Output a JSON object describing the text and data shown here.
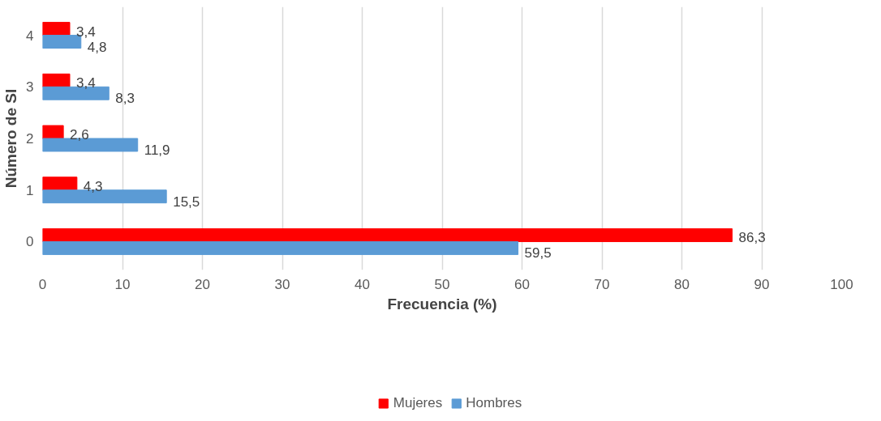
{
  "chart_data": {
    "type": "bar",
    "orientation": "horizontal",
    "xlabel": "Frecuencia (%)",
    "ylabel": "Número de SI",
    "categories": [
      "4",
      "3",
      "2",
      "1",
      "0"
    ],
    "series": [
      {
        "name": "Mujeres",
        "color": "#ff0000",
        "values": [
          3.4,
          3.4,
          2.6,
          4.3,
          86.3
        ],
        "value_labels": [
          "3,4",
          "3,4",
          "2,6",
          "4,3",
          "86,3"
        ]
      },
      {
        "name": "Hombres",
        "color": "#5b9bd5",
        "values": [
          4.8,
          8.3,
          11.9,
          15.5,
          59.5
        ],
        "value_labels": [
          "4,8",
          "8,3",
          "11,9",
          "15,5",
          "59,5"
        ]
      }
    ],
    "xlim": [
      0,
      100
    ],
    "xticks": [
      0,
      10,
      20,
      30,
      40,
      50,
      60,
      70,
      80,
      90,
      100
    ],
    "grid": "x",
    "legend": "bottom"
  }
}
